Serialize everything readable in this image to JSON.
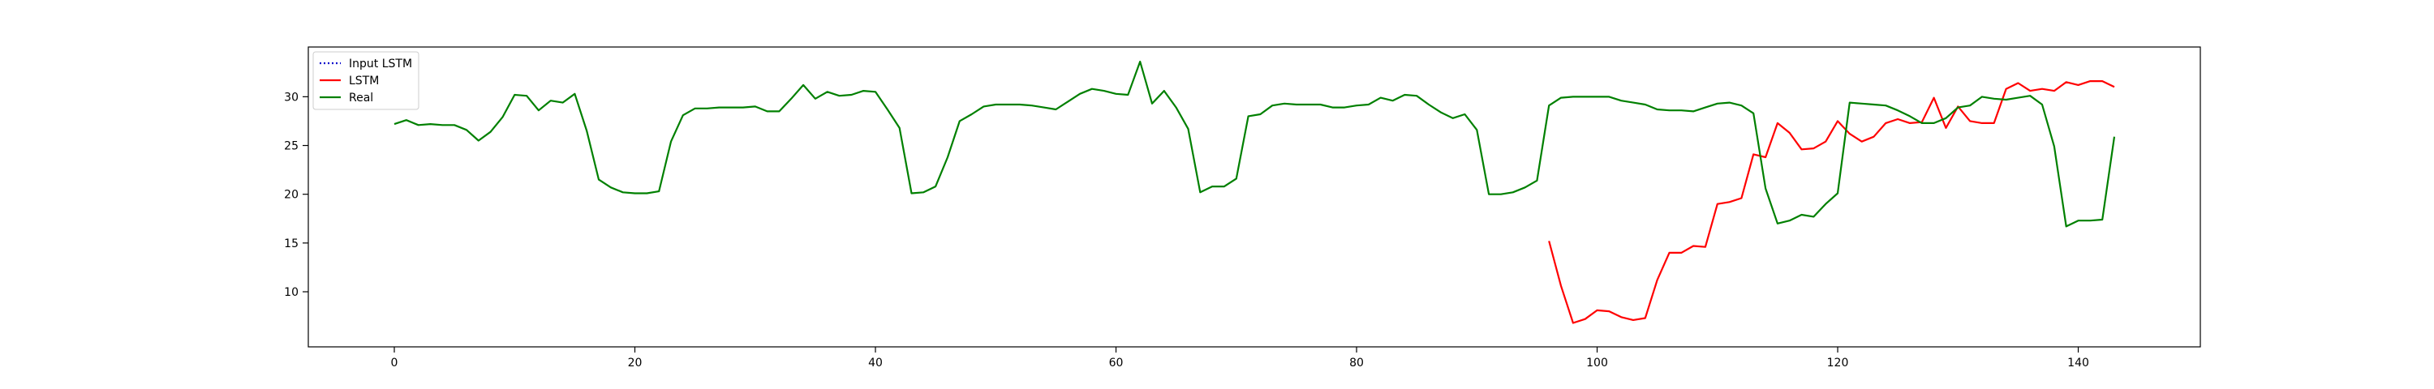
{
  "chart_data": {
    "type": "line",
    "title": "",
    "xlabel": "",
    "ylabel": "",
    "xlim": [
      -7.15,
      150.15
    ],
    "ylim": [
      4.35,
      35.1
    ],
    "xticks": [
      0,
      20,
      40,
      60,
      80,
      100,
      120,
      140
    ],
    "yticks": [
      10,
      15,
      20,
      25,
      30
    ],
    "grid": false,
    "legend_position": "top-left",
    "series": [
      {
        "name": "Input LSTM",
        "color": "#0000cc",
        "style": "dotted",
        "x_start": 0,
        "values": []
      },
      {
        "name": "LSTM",
        "color": "#ff0000",
        "style": "solid",
        "x_start": 96,
        "values": [
          15.2,
          10.6,
          6.8,
          7.2,
          8.1,
          8.0,
          7.4,
          7.1,
          7.3,
          11.2,
          14.0,
          14.0,
          14.7,
          14.6,
          19.0,
          19.2,
          19.6,
          24.1,
          23.8,
          27.3,
          26.3,
          24.6,
          24.7,
          25.4,
          27.5,
          26.2,
          25.4,
          25.9,
          27.3,
          27.7,
          27.3,
          27.4,
          29.9,
          26.8,
          29.0,
          27.5,
          27.3,
          27.3,
          30.8,
          31.4,
          30.6,
          30.8,
          30.6,
          31.5,
          31.2,
          31.6,
          31.6,
          31.0
        ]
      },
      {
        "name": "Real",
        "color": "#008000",
        "style": "solid",
        "x_start": 0,
        "values": [
          27.2,
          27.6,
          27.1,
          27.2,
          27.1,
          27.1,
          26.6,
          25.5,
          26.4,
          27.9,
          30.2,
          30.1,
          28.6,
          29.6,
          29.4,
          30.3,
          26.5,
          21.5,
          20.7,
          20.2,
          20.1,
          20.1,
          20.3,
          25.4,
          28.1,
          28.8,
          28.8,
          28.9,
          28.9,
          28.9,
          29.0,
          28.5,
          28.5,
          29.8,
          31.2,
          29.8,
          30.5,
          30.1,
          30.2,
          30.6,
          30.5,
          28.7,
          26.8,
          20.1,
          20.2,
          20.8,
          23.8,
          27.5,
          28.2,
          29.0,
          29.2,
          29.2,
          29.2,
          29.1,
          28.9,
          28.7,
          29.5,
          30.3,
          30.8,
          30.6,
          30.3,
          30.2,
          33.6,
          29.3,
          30.6,
          28.9,
          26.7,
          20.2,
          20.8,
          20.8,
          21.6,
          28.0,
          28.2,
          29.1,
          29.3,
          29.2,
          29.2,
          29.2,
          28.9,
          28.9,
          29.1,
          29.2,
          29.9,
          29.6,
          30.2,
          30.1,
          29.2,
          28.4,
          27.8,
          28.2,
          26.6,
          20.0,
          20.0,
          20.2,
          20.7,
          21.4,
          29.1,
          29.9,
          30.0,
          30.0,
          30.0,
          30.0,
          29.6,
          29.4,
          29.2,
          28.7,
          28.6,
          28.6,
          28.5,
          28.9,
          29.3,
          29.4,
          29.1,
          28.3,
          20.6,
          17.0,
          17.3,
          17.9,
          17.7,
          19.0,
          20.1,
          29.4,
          29.3,
          29.2,
          29.1,
          28.6,
          28.0,
          27.3,
          27.3,
          27.8,
          28.9,
          29.1,
          30.0,
          29.8,
          29.7,
          29.9,
          30.1,
          29.2,
          24.9,
          16.7,
          17.3,
          17.3,
          17.4,
          25.9
        ]
      }
    ]
  }
}
